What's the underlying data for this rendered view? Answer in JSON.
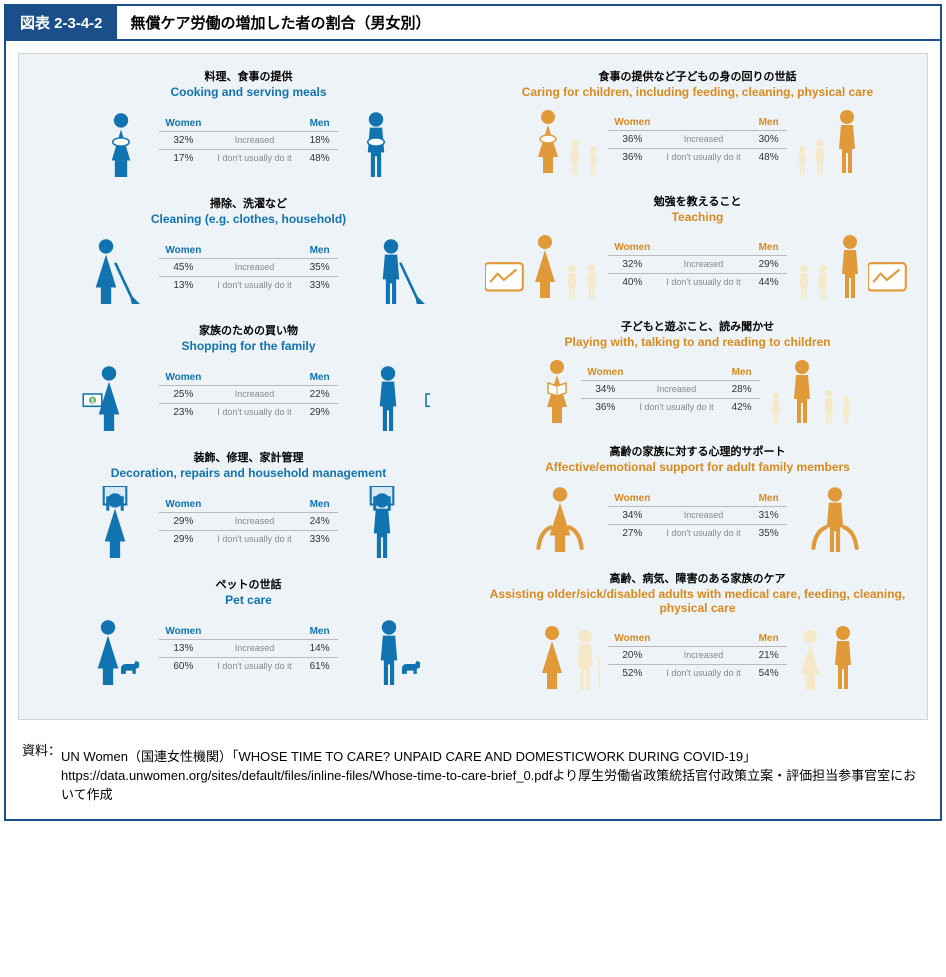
{
  "header": {
    "number": "図表 2-3-4-2",
    "title": "無償ケア労働の増加した者の割合（男女別）"
  },
  "labels": {
    "women": "Women",
    "men": "Men",
    "increased": "Increased",
    "dont": "I don't usually do it"
  },
  "colors": {
    "blue": "#1173b0",
    "blue_dark": "#0c5e93",
    "orange": "#e09a3a",
    "orange_dark": "#c77f1d",
    "cream": "#f6e9c9",
    "header_navy": "#1a4f8a",
    "plate_bg": "#eef3f7"
  },
  "left_panels": [
    {
      "jp": "料理、食事の提供",
      "en": "Cooking and serving meals",
      "women_inc": "32%",
      "men_inc": "18%",
      "women_no": "17%",
      "men_no": "48%",
      "graphic": "cook"
    },
    {
      "jp": "掃除、洗濯など",
      "en": "Cleaning (e.g. clothes, household)",
      "women_inc": "45%",
      "men_inc": "35%",
      "women_no": "13%",
      "men_no": "33%",
      "graphic": "clean"
    },
    {
      "jp": "家族のための買い物",
      "en": "Shopping for the family",
      "women_inc": "25%",
      "men_inc": "22%",
      "women_no": "23%",
      "men_no": "29%",
      "graphic": "shop"
    },
    {
      "jp": "装飾、修理、家計管理",
      "en": "Decoration, repairs and household management",
      "women_inc": "29%",
      "men_inc": "24%",
      "women_no": "29%",
      "men_no": "33%",
      "graphic": "repair"
    },
    {
      "jp": "ペットの世話",
      "en": "Pet care",
      "women_inc": "13%",
      "men_inc": "14%",
      "women_no": "60%",
      "men_no": "61%",
      "graphic": "pet"
    }
  ],
  "right_panels": [
    {
      "jp": "食事の提供など子どもの身の回りの世話",
      "en": "Caring for children, including feeding, cleaning, physical care",
      "women_inc": "36%",
      "men_inc": "30%",
      "women_no": "36%",
      "men_no": "48%",
      "graphic": "childcare"
    },
    {
      "jp": "勉強を教えること",
      "en": "Teaching",
      "women_inc": "32%",
      "men_inc": "29%",
      "women_no": "40%",
      "men_no": "44%",
      "graphic": "teach"
    },
    {
      "jp": "子どもと遊ぶこと、読み聞かせ",
      "en": "Playing with, talking to and reading to children",
      "women_inc": "34%",
      "men_inc": "28%",
      "women_no": "36%",
      "men_no": "42%",
      "graphic": "play"
    },
    {
      "jp": "高齢の家族に対する心理的サポート",
      "en": "Affective/emotional support for adult family members",
      "women_inc": "34%",
      "men_inc": "31%",
      "women_no": "27%",
      "men_no": "35%",
      "graphic": "support"
    },
    {
      "jp": "高齢、病気、障害のある家族のケア",
      "en": "Assisting older/sick/disabled adults with medical care, feeding, cleaning, physical care",
      "women_inc": "20%",
      "men_inc": "21%",
      "women_no": "52%",
      "men_no": "54%",
      "graphic": "assist"
    }
  ],
  "footer": {
    "label": "資料：",
    "line1": "UN Women（国連女性機関）「WHOSE TIME TO CARE? UNPAID CARE AND DOMESTICWORK DURING COVID-19」https://data.unwomen.org/sites/default/files/inline-files/Whose-time-to-care-brief_0.pdfより厚生労働省政策統括官付政策立案・評価担当参事官室において作成"
  }
}
